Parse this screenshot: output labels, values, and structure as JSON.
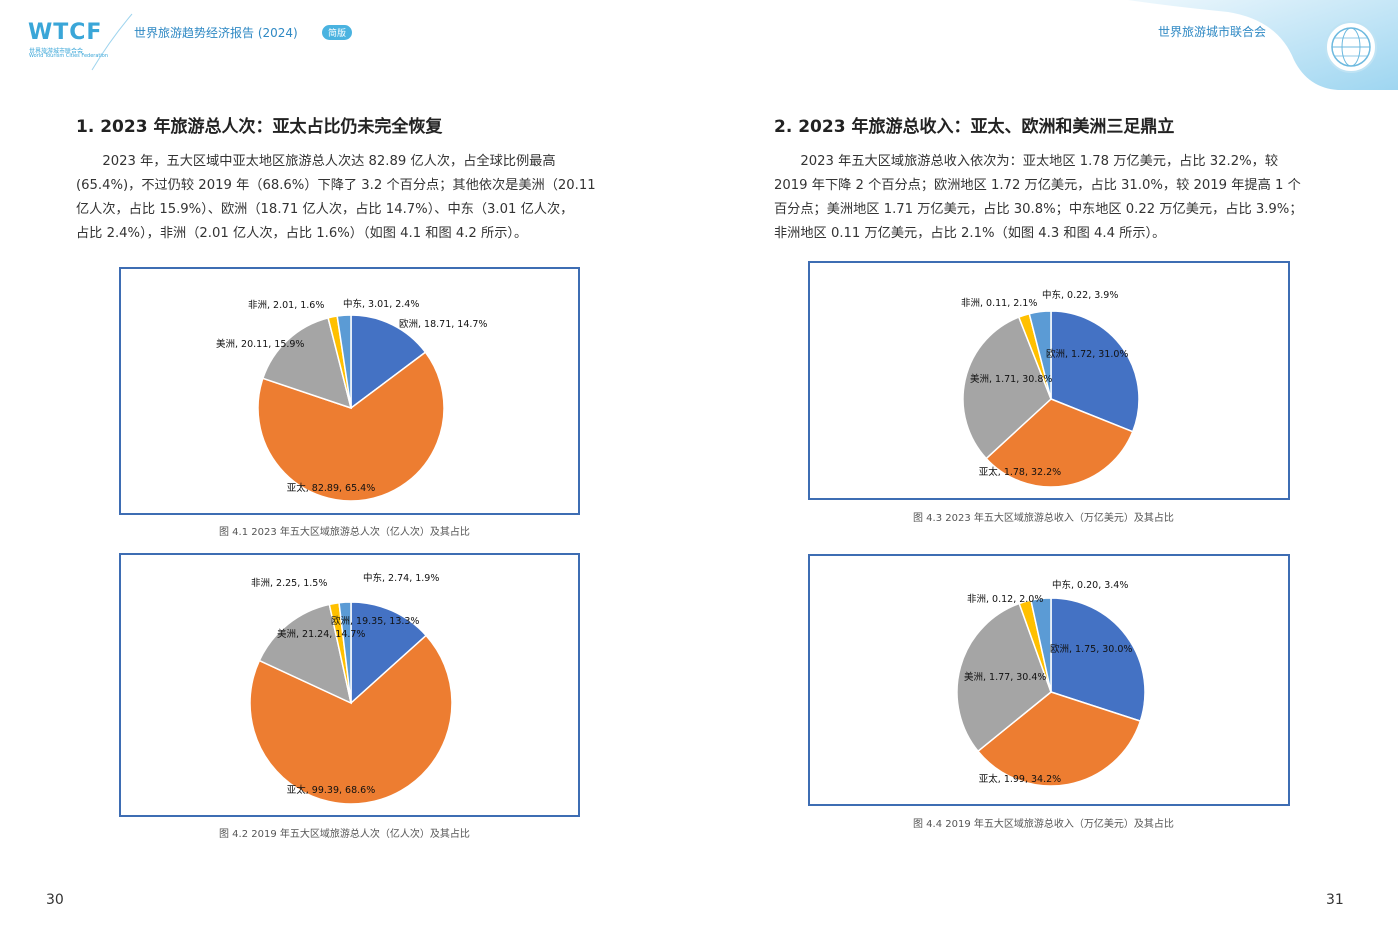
{
  "header": {
    "logo_text": "WTCF",
    "logo_sub_cn": "世界旅游城市联合会",
    "logo_sub_en": "World Tourism Cities Federation",
    "report_title": "世界旅游趋势经济报告 (2024)",
    "badge": "简版",
    "org_name": "世界旅游城市联合会"
  },
  "left": {
    "title": "1. 2023 年旅游总人次：亚太占比仍未完全恢复",
    "para": [
      "　　2023 年，五大区域中亚太地区旅游总人次达 82.89 亿人次，占全球比例最高",
      "(65.4%)，不过仍较 2019 年（68.6%）下降了 3.2 个百分点；其他依次是美洲（20.11",
      "亿人次，占比 15.9%）、欧洲（18.71 亿人次，占比 14.7%）、中东（3.01 亿人次，",
      "占比 2.4%），非洲（2.01 亿人次，占比 1.6%）（如图 4.1 和图 4.2 所示）。"
    ],
    "caption1": "图 4.1  2023 年五大区域旅游总人次（亿人次）及其占比",
    "caption2": "图 4.2  2019 年五大区域旅游总人次（亿人次）及其占比",
    "page_number": "30"
  },
  "right": {
    "title": "2. 2023 年旅游总收入：亚太、欧洲和美洲三足鼎立",
    "para": [
      "　　2023 年五大区域旅游总收入依次为：亚太地区 1.78 万亿美元，占比 32.2%，较",
      "2019 年下降 2 个百分点；欧洲地区 1.72 万亿美元，占比 31.0%，较 2019 年提高 1 个",
      "百分点；美洲地区 1.71 万亿美元，占比 30.8%；中东地区 0.22 万亿美元，占比 3.9%；",
      "非洲地区 0.11 万亿美元，占比 2.1%（如图 4.3 和图 4.4 所示）。"
    ],
    "caption3": "图 4.3  2023 年五大区域旅游总收入（万亿美元）及其占比",
    "caption4": "图 4.4  2019 年五大区域旅游总收入（万亿美元）及其占比",
    "page_number": "31"
  },
  "colors": {
    "europe": "#4472c4",
    "asia_pacific": "#ed7d31",
    "americas": "#a5a5a5",
    "africa": "#ffc000",
    "middle_east": "#5b9bd5"
  },
  "chart_data": [
    {
      "type": "pie",
      "categories": [
        "欧洲",
        "亚太",
        "美洲",
        "非洲",
        "中东"
      ],
      "values": [
        18.71,
        82.89,
        20.11,
        2.01,
        3.01
      ],
      "percents": [
        14.7,
        65.4,
        15.9,
        1.6,
        2.4
      ],
      "labels": [
        "欧洲, 18.71, 14.7%",
        "亚太, 82.89, 65.4%",
        "美洲, 20.11, 15.9%",
        "非洲, 2.01, 1.6%",
        "中东, 3.01, 2.4%"
      ]
    },
    {
      "type": "pie",
      "categories": [
        "欧洲",
        "亚太",
        "美洲",
        "非洲",
        "中东"
      ],
      "values": [
        19.35,
        99.39,
        21.24,
        2.25,
        2.74
      ],
      "percents": [
        13.3,
        68.6,
        14.7,
        1.5,
        1.9
      ],
      "labels": [
        "欧洲, 19.35, 13.3%",
        "亚太, 99.39, 68.6%",
        "美洲, 21.24, 14.7%",
        "非洲, 2.25, 1.5%",
        "中东, 2.74, 1.9%"
      ]
    },
    {
      "type": "pie",
      "categories": [
        "欧洲",
        "亚太",
        "美洲",
        "非洲",
        "中东"
      ],
      "values": [
        1.72,
        1.78,
        1.71,
        0.11,
        0.22
      ],
      "percents": [
        31.0,
        32.2,
        30.8,
        2.1,
        3.9
      ],
      "labels": [
        "欧洲, 1.72, 31.0%",
        "亚太, 1.78, 32.2%",
        "美洲, 1.71, 30.8%",
        "非洲, 0.11, 2.1%",
        "中东, 0.22, 3.9%"
      ]
    },
    {
      "type": "pie",
      "categories": [
        "欧洲",
        "亚太",
        "美洲",
        "非洲",
        "中东"
      ],
      "values": [
        1.75,
        1.99,
        1.77,
        0.12,
        0.2
      ],
      "percents": [
        30.0,
        34.2,
        30.4,
        2.0,
        3.4
      ],
      "labels": [
        "欧洲, 1.75, 30.0%",
        "亚太, 1.99, 34.2%",
        "美洲, 1.77, 30.4%",
        "非洲, 0.12, 2.0%",
        "中东, 0.20, 3.4%"
      ]
    }
  ]
}
